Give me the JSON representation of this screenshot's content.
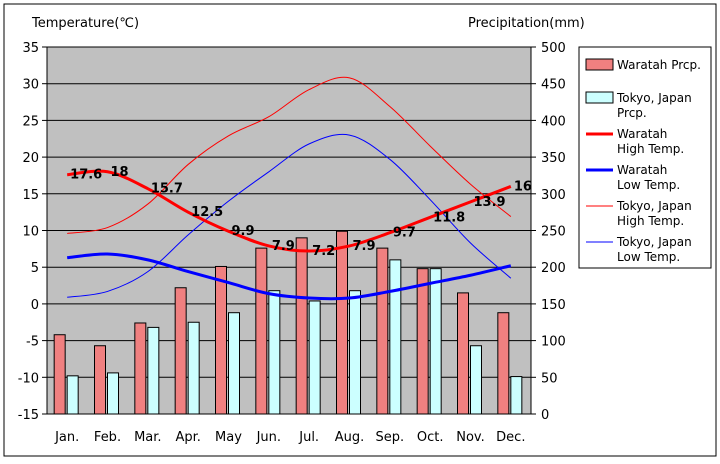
{
  "chart_data": {
    "type": "bar",
    "y_left": {
      "label": "Temperature(℃)",
      "min": -15,
      "max": 35,
      "step": 5
    },
    "y_right": {
      "label": "Precipitation(mm)",
      "min": 0,
      "max": 500,
      "step": 50
    },
    "categories": [
      "Jan.",
      "Feb.",
      "Mar.",
      "Apr.",
      "May",
      "Jun.",
      "Jul.",
      "Aug.",
      "Sep.",
      "Oct.",
      "Nov.",
      "Dec."
    ],
    "bar_series": [
      {
        "name": "Waratah Prcp.",
        "axis": "right",
        "color": "#f08080",
        "values": [
          108,
          93,
          124,
          172,
          201,
          226,
          240,
          249,
          226,
          198,
          165,
          138
        ]
      },
      {
        "name": "Tokyo, Japan Prcp.",
        "axis": "right",
        "color": "#ccffff",
        "values": [
          52,
          56,
          118,
          125,
          138,
          168,
          154,
          168,
          210,
          198,
          93,
          51
        ]
      }
    ],
    "line_series": [
      {
        "name": "Waratah High Temp.",
        "axis": "left",
        "color": "#ff0000",
        "width": "thick",
        "values": [
          17.6,
          18,
          15.7,
          12.5,
          9.9,
          7.9,
          7.2,
          7.9,
          9.7,
          11.8,
          13.9,
          16
        ],
        "labels": [
          "17.6",
          "18",
          "15.7",
          "12.5",
          "9.9",
          "7.9",
          "7.2",
          "7.9",
          "9.7",
          "11.8",
          "13.9",
          "16"
        ]
      },
      {
        "name": "Waratah Low Temp.",
        "axis": "left",
        "color": "#0000ff",
        "width": "thick",
        "values": [
          6.3,
          6.8,
          6.0,
          4.4,
          2.9,
          1.4,
          0.8,
          0.8,
          1.7,
          2.8,
          3.9,
          5.2
        ]
      },
      {
        "name": "Tokyo, Japan High Temp.",
        "axis": "left",
        "color": "#ff0000",
        "width": "thin",
        "values": [
          9.6,
          10.4,
          13.6,
          19.0,
          22.9,
          25.5,
          29.2,
          30.8,
          26.9,
          21.5,
          16.3,
          11.9
        ]
      },
      {
        "name": "Tokyo, Japan Low Temp.",
        "axis": "left",
        "color": "#0000ff",
        "width": "thin",
        "values": [
          0.9,
          1.7,
          4.4,
          9.4,
          14.0,
          18.0,
          21.8,
          23.0,
          19.7,
          14.2,
          8.3,
          3.5
        ]
      }
    ],
    "legend": {
      "placement": "right",
      "items": [
        {
          "lines": [
            "Waratah Prcp."
          ],
          "kind": "bar",
          "color": "#f08080"
        },
        {
          "lines": [
            "Tokyo, Japan",
            "Prcp."
          ],
          "kind": "bar",
          "color": "#ccffff"
        },
        {
          "lines": [
            "Waratah",
            "High Temp."
          ],
          "kind": "thick-line",
          "color": "#ff0000"
        },
        {
          "lines": [
            "Waratah",
            "Low Temp."
          ],
          "kind": "thick-line",
          "color": "#0000ff"
        },
        {
          "lines": [
            "Tokyo, Japan",
            "High Temp."
          ],
          "kind": "thin-line",
          "color": "#ff0000"
        },
        {
          "lines": [
            "Tokyo, Japan",
            "Low Temp."
          ],
          "kind": "thin-line",
          "color": "#0000ff"
        }
      ]
    },
    "plot_background": "#c0c0c0",
    "grid": "horizontal"
  }
}
